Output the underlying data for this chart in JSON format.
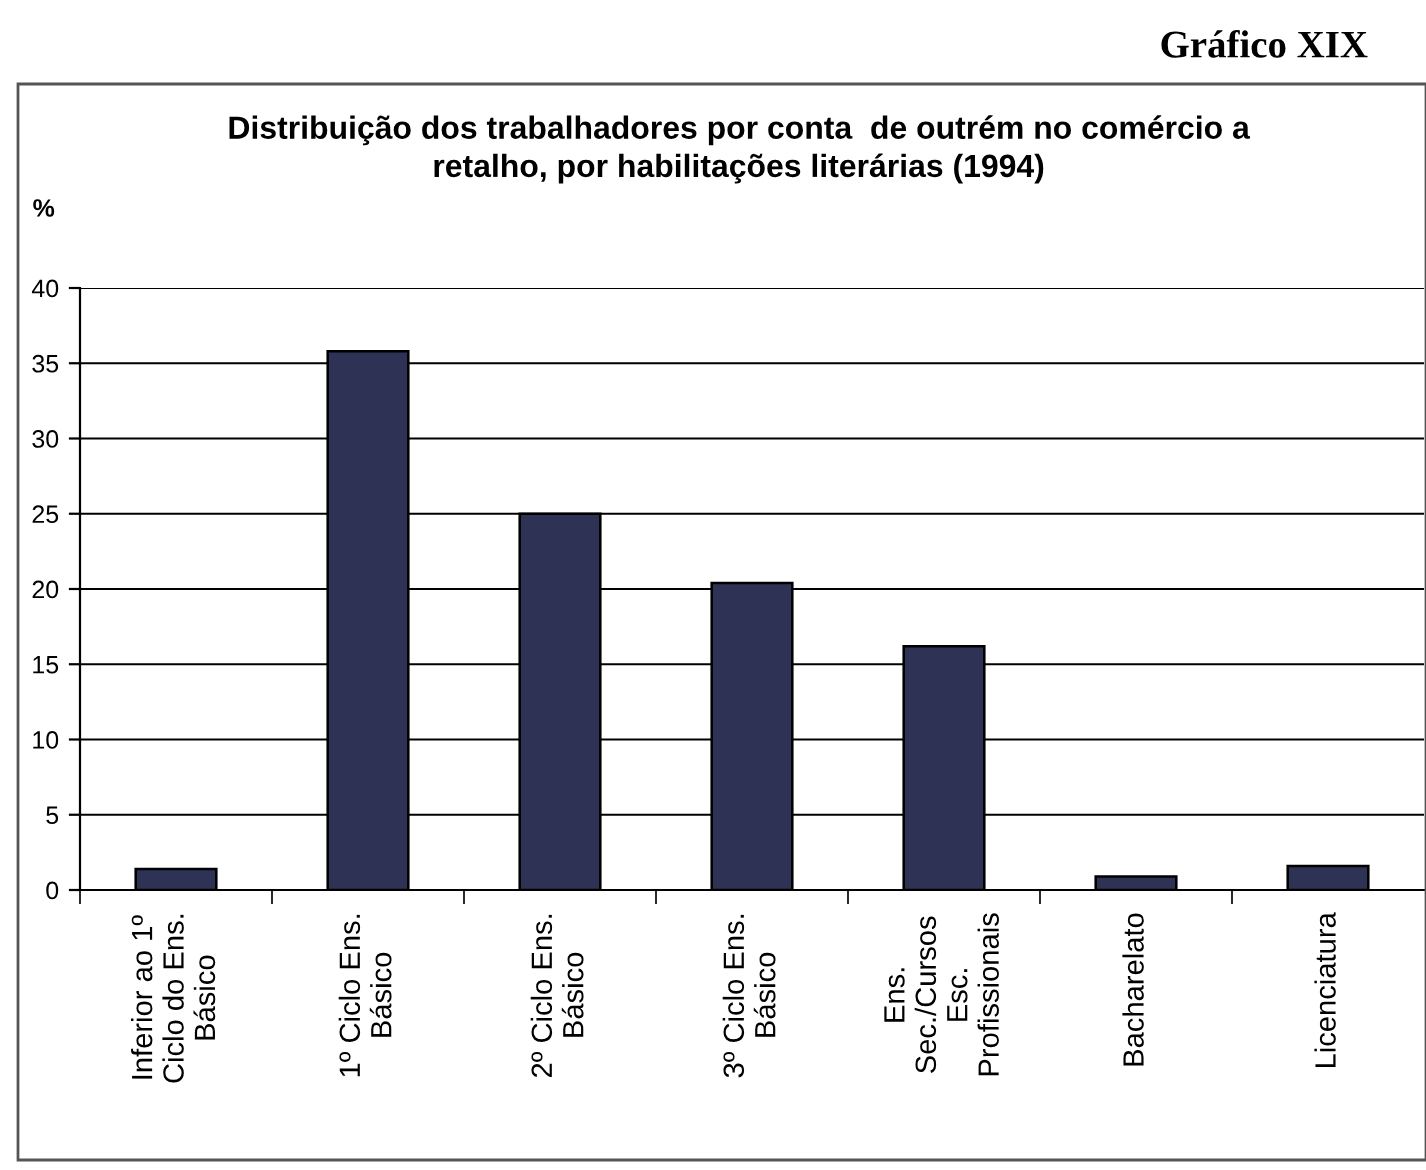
{
  "chart_data": {
    "type": "bar",
    "title": "Distribuição dos trabalhadores por conta  de outrém no comércio a\nretalho, por habilitações literárias (1994)",
    "ylabel": "%",
    "annotations": [
      "Gráfico XIX"
    ],
    "categories": [
      "Inferior ao 1º\nCiclo do Ens.\nBásico",
      "1º Ciclo Ens.\nBásico",
      "2º Ciclo Ens.\nBásico",
      "3º Ciclo Ens.\nBásico",
      "Ens.\nSec./Cursos\nEsc.\nProfissionais",
      "Bacharelato",
      "Licenciatura"
    ],
    "values": [
      1.4,
      35.8,
      25.0,
      20.4,
      16.2,
      0.9,
      1.6
    ],
    "color": "#2e3356",
    "ylim": [
      0,
      40
    ],
    "yticks": [
      0,
      5,
      10,
      15,
      20,
      25,
      30,
      35,
      40
    ],
    "grid": "y"
  }
}
